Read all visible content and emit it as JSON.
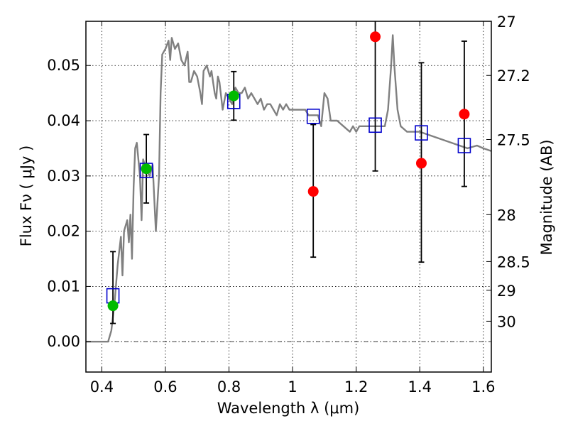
{
  "chart_data": {
    "type": "scatter",
    "xlabel": "Wavelength  λ (μm)",
    "ylabel": "Flux  Fν  ( μJy )",
    "ylabel_right": "Magnitude (AB)",
    "xlim": [
      0.35,
      1.625
    ],
    "ylim": [
      -0.0055,
      0.058
    ],
    "grid": true,
    "x_ticks": [
      0.4,
      0.6,
      0.8,
      1.0,
      1.2,
      1.4,
      1.6
    ],
    "x_tick_labels": [
      "0.4",
      "0.6",
      "0.8",
      "1",
      "1.2",
      "1.4",
      "1.6"
    ],
    "y_ticks": [
      0.0,
      0.01,
      0.02,
      0.03,
      0.04,
      0.05
    ],
    "y_tick_labels": [
      "0.00",
      "0.01",
      "0.02",
      "0.03",
      "0.04",
      "0.05"
    ],
    "right_ticks": [
      {
        "label": "27",
        "flux": 0.058
      },
      {
        "label": "27.2",
        "flux": 0.0482
      },
      {
        "label": "27.5",
        "flux": 0.0366
      },
      {
        "label": "28",
        "flux": 0.023
      },
      {
        "label": "28.5",
        "flux": 0.0145
      },
      {
        "label": "29",
        "flux": 0.0093
      },
      {
        "label": "30",
        "flux": 0.0037
      }
    ],
    "series": [
      {
        "kind": "template",
        "color": "#808080",
        "points": [
          [
            0.35,
            0
          ],
          [
            0.42,
            0
          ],
          [
            0.43,
            0.002
          ],
          [
            0.44,
            0.007
          ],
          [
            0.45,
            0.014
          ],
          [
            0.46,
            0.019
          ],
          [
            0.465,
            0.012
          ],
          [
            0.47,
            0.02
          ],
          [
            0.48,
            0.022
          ],
          [
            0.485,
            0.018
          ],
          [
            0.49,
            0.023
          ],
          [
            0.495,
            0.015
          ],
          [
            0.5,
            0.028
          ],
          [
            0.505,
            0.035
          ],
          [
            0.51,
            0.036
          ],
          [
            0.52,
            0.03
          ],
          [
            0.525,
            0.022
          ],
          [
            0.53,
            0.033
          ],
          [
            0.54,
            0.031
          ],
          [
            0.55,
            0.03
          ],
          [
            0.56,
            0.032
          ],
          [
            0.57,
            0.02
          ],
          [
            0.58,
            0.03
          ],
          [
            0.585,
            0.045
          ],
          [
            0.59,
            0.052
          ],
          [
            0.6,
            0.053
          ],
          [
            0.61,
            0.0545
          ],
          [
            0.615,
            0.051
          ],
          [
            0.62,
            0.055
          ],
          [
            0.63,
            0.053
          ],
          [
            0.64,
            0.054
          ],
          [
            0.65,
            0.051
          ],
          [
            0.66,
            0.05
          ],
          [
            0.67,
            0.0525
          ],
          [
            0.675,
            0.047
          ],
          [
            0.68,
            0.047
          ],
          [
            0.69,
            0.049
          ],
          [
            0.7,
            0.048
          ],
          [
            0.71,
            0.045
          ],
          [
            0.715,
            0.043
          ],
          [
            0.72,
            0.049
          ],
          [
            0.73,
            0.05
          ],
          [
            0.74,
            0.048
          ],
          [
            0.745,
            0.049
          ],
          [
            0.75,
            0.047
          ],
          [
            0.755,
            0.045
          ],
          [
            0.76,
            0.044
          ],
          [
            0.765,
            0.048
          ],
          [
            0.77,
            0.047
          ],
          [
            0.78,
            0.042
          ],
          [
            0.79,
            0.045
          ],
          [
            0.8,
            0.044
          ],
          [
            0.81,
            0.043
          ],
          [
            0.82,
            0.046
          ],
          [
            0.83,
            0.045
          ],
          [
            0.84,
            0.045
          ],
          [
            0.85,
            0.046
          ],
          [
            0.86,
            0.044
          ],
          [
            0.87,
            0.045
          ],
          [
            0.88,
            0.044
          ],
          [
            0.89,
            0.043
          ],
          [
            0.9,
            0.044
          ],
          [
            0.91,
            0.042
          ],
          [
            0.92,
            0.043
          ],
          [
            0.93,
            0.043
          ],
          [
            0.94,
            0.042
          ],
          [
            0.95,
            0.041
          ],
          [
            0.96,
            0.043
          ],
          [
            0.97,
            0.042
          ],
          [
            0.98,
            0.043
          ],
          [
            0.99,
            0.042
          ],
          [
            1.0,
            0.042
          ],
          [
            1.02,
            0.042
          ],
          [
            1.04,
            0.042
          ],
          [
            1.05,
            0.041
          ],
          [
            1.06,
            0.041
          ],
          [
            1.08,
            0.041
          ],
          [
            1.09,
            0.039
          ],
          [
            1.1,
            0.045
          ],
          [
            1.11,
            0.044
          ],
          [
            1.12,
            0.04
          ],
          [
            1.14,
            0.04
          ],
          [
            1.16,
            0.039
          ],
          [
            1.18,
            0.038
          ],
          [
            1.19,
            0.039
          ],
          [
            1.2,
            0.038
          ],
          [
            1.21,
            0.039
          ],
          [
            1.22,
            0.039
          ],
          [
            1.24,
            0.039
          ],
          [
            1.26,
            0.039
          ],
          [
            1.28,
            0.039
          ],
          [
            1.29,
            0.039
          ],
          [
            1.3,
            0.042
          ],
          [
            1.31,
            0.05
          ],
          [
            1.315,
            0.0555
          ],
          [
            1.32,
            0.05
          ],
          [
            1.33,
            0.042
          ],
          [
            1.34,
            0.039
          ],
          [
            1.36,
            0.038
          ],
          [
            1.4,
            0.038
          ],
          [
            1.45,
            0.037
          ],
          [
            1.5,
            0.036
          ],
          [
            1.55,
            0.035
          ],
          [
            1.58,
            0.0355
          ],
          [
            1.6,
            0.035
          ],
          [
            1.625,
            0.0345
          ]
        ]
      },
      {
        "kind": "model_flux",
        "marker": "open-square",
        "color": "#0000cc",
        "x": [
          0.435,
          0.54,
          0.815,
          1.065,
          1.26,
          1.405,
          1.54
        ],
        "y": [
          0.0083,
          0.031,
          0.0435,
          0.0408,
          0.0392,
          0.0378,
          0.0355
        ]
      },
      {
        "kind": "observed_flux",
        "marker": "filled-circle",
        "color": "#00bb00",
        "x": [
          0.435,
          0.54,
          0.815
        ],
        "y": [
          0.0065,
          0.0313,
          0.0445
        ],
        "yerr_low": [
          0.0033,
          0.0251,
          0.0401
        ],
        "yerr_high": [
          0.0163,
          0.0375,
          0.0489
        ]
      },
      {
        "kind": "observed_flux_red",
        "marker": "filled-circle",
        "color": "#ff0000",
        "x": [
          1.065,
          1.26,
          1.405,
          1.54
        ],
        "y": [
          0.0272,
          0.0552,
          0.0323,
          0.0412
        ],
        "yerr_low": [
          0.0153,
          0.0309,
          0.0144,
          0.0281
        ],
        "yerr_high": [
          0.0393,
          0.0585,
          0.0505,
          0.0544
        ]
      }
    ],
    "error_bar_color": "#000000",
    "zero_line": true
  }
}
